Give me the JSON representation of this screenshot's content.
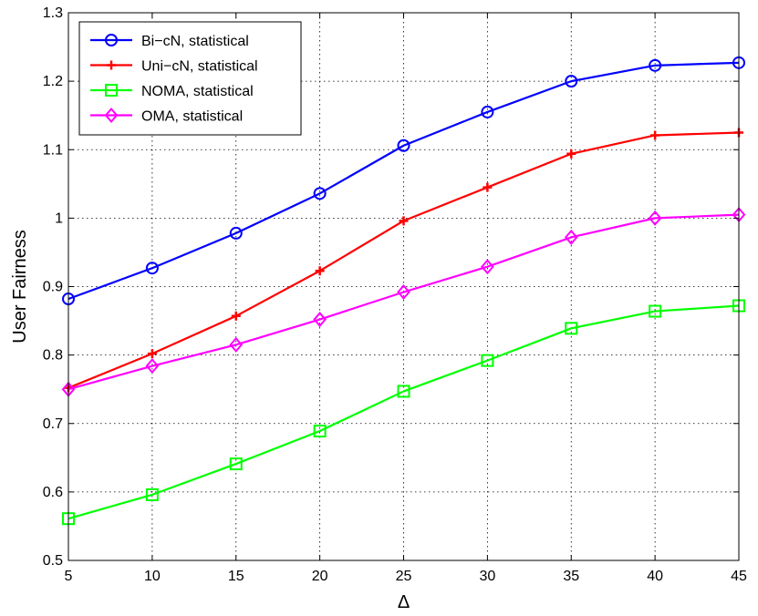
{
  "chart_data": {
    "type": "line",
    "xlabel": "Δ",
    "ylabel": "User Fairness",
    "xlim": [
      5,
      45
    ],
    "ylim": [
      0.5,
      1.3
    ],
    "xticks": [
      5,
      10,
      15,
      20,
      25,
      30,
      35,
      40,
      45
    ],
    "yticks": [
      0.5,
      0.6,
      0.7,
      0.8,
      0.9,
      1,
      1.1,
      1.2,
      1.3
    ],
    "grid": true,
    "legend_position": "top-left",
    "x": [
      5,
      10,
      15,
      20,
      25,
      30,
      35,
      40,
      45
    ],
    "series": [
      {
        "name": "Bi−cN, statistical",
        "color": "#0000ff",
        "marker": "circle",
        "values": [
          0.882,
          0.927,
          0.978,
          1.036,
          1.106,
          1.155,
          1.2,
          1.223,
          1.227
        ]
      },
      {
        "name": "Uni−cN, statistical",
        "color": "#ff0000",
        "marker": "plus",
        "values": [
          0.752,
          0.802,
          0.857,
          0.923,
          0.996,
          1.045,
          1.094,
          1.121,
          1.125
        ]
      },
      {
        "name": "NOMA, statistical",
        "color": "#00ff00",
        "marker": "square",
        "values": [
          0.561,
          0.596,
          0.641,
          0.689,
          0.747,
          0.792,
          0.839,
          0.864,
          0.872
        ]
      },
      {
        "name": "OMA, statistical",
        "color": "#ff00ff",
        "marker": "diamond",
        "values": [
          0.75,
          0.784,
          0.815,
          0.852,
          0.892,
          0.929,
          0.972,
          1.0,
          1.005
        ]
      }
    ]
  }
}
